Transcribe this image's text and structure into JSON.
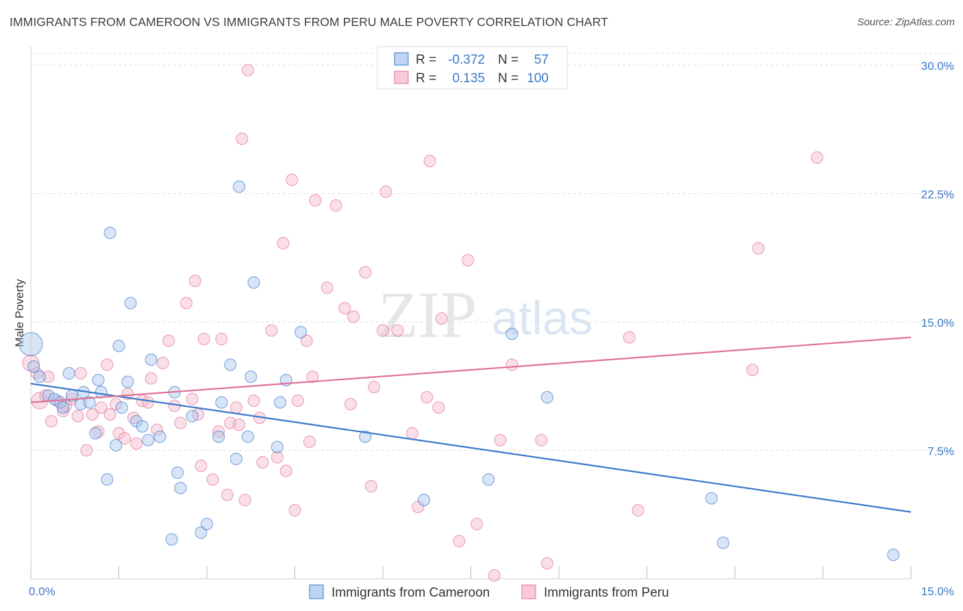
{
  "title": "IMMIGRANTS FROM CAMEROON VS IMMIGRANTS FROM PERU MALE POVERTY CORRELATION CHART",
  "source": "Source: ZipAtlas.com",
  "watermark": {
    "zip": "ZIP",
    "atlas": "atlas"
  },
  "colors": {
    "blue": "#3a78c8",
    "pink": "#e07098",
    "blue_fill": "#a8c6ee",
    "pink_fill": "#f5b8cc",
    "grid": "#dddddd"
  },
  "legend": {
    "rows": [
      {
        "r_label": "R =",
        "r_value": "-0.372",
        "n_label": "N =",
        "n_value": "57"
      },
      {
        "r_label": "R =",
        "r_value": "0.135",
        "n_label": "N =",
        "n_value": "100"
      }
    ]
  },
  "bottom_legend": [
    "Immigrants from Cameroon",
    "Immigrants from Peru"
  ],
  "chart_data": {
    "type": "scatter",
    "title": "IMMIGRANTS FROM CAMEROON VS IMMIGRANTS FROM PERU MALE POVERTY CORRELATION CHART",
    "xlabel": "",
    "ylabel": "Male Poverty",
    "xlim": [
      0,
      15
    ],
    "ylim": [
      0,
      31
    ],
    "x_tick_labels": [
      "0.0%",
      "15.0%"
    ],
    "y_ticks": [
      7.5,
      15.0,
      22.5,
      30.0
    ],
    "y_tick_labels": [
      "7.5%",
      "15.0%",
      "22.5%",
      "30.0%"
    ],
    "grid": true,
    "legend_position": "top-center",
    "series": [
      {
        "name": "Immigrants from Cameroon",
        "color": "#3a78c8",
        "trend": {
          "x": [
            0,
            15
          ],
          "y": [
            11.4,
            3.9
          ]
        },
        "points": [
          {
            "x": 0.0,
            "y": 13.7,
            "s": "xl"
          },
          {
            "x": 0.05,
            "y": 12.4,
            "s": "m"
          },
          {
            "x": 0.15,
            "y": 11.8,
            "s": "m"
          },
          {
            "x": 0.3,
            "y": 10.7,
            "s": "m"
          },
          {
            "x": 0.4,
            "y": 10.5,
            "s": "m"
          },
          {
            "x": 0.5,
            "y": 10.3,
            "s": "m"
          },
          {
            "x": 0.55,
            "y": 10.0,
            "s": "m"
          },
          {
            "x": 0.65,
            "y": 12.0,
            "s": "m"
          },
          {
            "x": 0.7,
            "y": 10.7,
            "s": "m"
          },
          {
            "x": 0.85,
            "y": 10.2,
            "s": "m"
          },
          {
            "x": 0.9,
            "y": 10.9,
            "s": "m"
          },
          {
            "x": 1.0,
            "y": 10.3,
            "s": "m"
          },
          {
            "x": 1.1,
            "y": 8.5,
            "s": "m"
          },
          {
            "x": 1.15,
            "y": 11.6,
            "s": "m"
          },
          {
            "x": 1.2,
            "y": 10.9,
            "s": "m"
          },
          {
            "x": 1.3,
            "y": 5.8,
            "s": "m"
          },
          {
            "x": 1.35,
            "y": 20.2,
            "s": "m"
          },
          {
            "x": 1.45,
            "y": 7.8,
            "s": "m"
          },
          {
            "x": 1.5,
            "y": 13.6,
            "s": "m"
          },
          {
            "x": 1.55,
            "y": 10.0,
            "s": "m"
          },
          {
            "x": 1.65,
            "y": 11.5,
            "s": "m"
          },
          {
            "x": 1.7,
            "y": 16.1,
            "s": "m"
          },
          {
            "x": 1.8,
            "y": 9.2,
            "s": "m"
          },
          {
            "x": 1.9,
            "y": 8.9,
            "s": "m"
          },
          {
            "x": 2.0,
            "y": 8.1,
            "s": "m"
          },
          {
            "x": 2.05,
            "y": 12.8,
            "s": "m"
          },
          {
            "x": 2.2,
            "y": 8.3,
            "s": "m"
          },
          {
            "x": 2.4,
            "y": 2.3,
            "s": "m"
          },
          {
            "x": 2.45,
            "y": 10.9,
            "s": "m"
          },
          {
            "x": 2.5,
            "y": 6.2,
            "s": "m"
          },
          {
            "x": 2.55,
            "y": 5.3,
            "s": "m"
          },
          {
            "x": 2.75,
            "y": 9.5,
            "s": "m"
          },
          {
            "x": 2.9,
            "y": 2.7,
            "s": "m"
          },
          {
            "x": 3.0,
            "y": 3.2,
            "s": "m"
          },
          {
            "x": 3.2,
            "y": 8.3,
            "s": "m"
          },
          {
            "x": 3.25,
            "y": 10.3,
            "s": "m"
          },
          {
            "x": 3.4,
            "y": 12.5,
            "s": "m"
          },
          {
            "x": 3.5,
            "y": 7.0,
            "s": "m"
          },
          {
            "x": 3.55,
            "y": 22.9,
            "s": "m"
          },
          {
            "x": 3.7,
            "y": 8.3,
            "s": "m"
          },
          {
            "x": 3.75,
            "y": 11.8,
            "s": "m"
          },
          {
            "x": 3.8,
            "y": 17.3,
            "s": "m"
          },
          {
            "x": 4.2,
            "y": 7.7,
            "s": "m"
          },
          {
            "x": 4.25,
            "y": 10.3,
            "s": "m"
          },
          {
            "x": 4.35,
            "y": 11.6,
            "s": "m"
          },
          {
            "x": 4.6,
            "y": 14.4,
            "s": "m"
          },
          {
            "x": 5.7,
            "y": 8.3,
            "s": "m"
          },
          {
            "x": 6.7,
            "y": 4.6,
            "s": "m"
          },
          {
            "x": 7.8,
            "y": 5.8,
            "s": "m"
          },
          {
            "x": 8.2,
            "y": 14.3,
            "s": "m"
          },
          {
            "x": 8.8,
            "y": 10.6,
            "s": "m"
          },
          {
            "x": 11.6,
            "y": 4.7,
            "s": "m"
          },
          {
            "x": 11.8,
            "y": 2.1,
            "s": "m"
          },
          {
            "x": 14.7,
            "y": 1.4,
            "s": "m"
          }
        ]
      },
      {
        "name": "Immigrants from Peru",
        "color": "#e07098",
        "trend": {
          "x": [
            0,
            15
          ],
          "y": [
            10.3,
            14.1
          ]
        },
        "points": [
          {
            "x": 0.0,
            "y": 12.6,
            "s": "l"
          },
          {
            "x": 0.1,
            "y": 12.0,
            "s": "m"
          },
          {
            "x": 0.15,
            "y": 10.4,
            "s": "l"
          },
          {
            "x": 0.25,
            "y": 10.7,
            "s": "m"
          },
          {
            "x": 0.3,
            "y": 11.8,
            "s": "m"
          },
          {
            "x": 0.35,
            "y": 9.2,
            "s": "m"
          },
          {
            "x": 0.45,
            "y": 10.4,
            "s": "m"
          },
          {
            "x": 0.55,
            "y": 9.8,
            "s": "m"
          },
          {
            "x": 0.6,
            "y": 10.1,
            "s": "m"
          },
          {
            "x": 0.7,
            "y": 10.5,
            "s": "m"
          },
          {
            "x": 0.8,
            "y": 9.5,
            "s": "m"
          },
          {
            "x": 0.85,
            "y": 12.0,
            "s": "m"
          },
          {
            "x": 0.95,
            "y": 7.5,
            "s": "m"
          },
          {
            "x": 1.05,
            "y": 9.6,
            "s": "m"
          },
          {
            "x": 1.15,
            "y": 8.6,
            "s": "m"
          },
          {
            "x": 1.2,
            "y": 10.0,
            "s": "m"
          },
          {
            "x": 1.3,
            "y": 12.5,
            "s": "m"
          },
          {
            "x": 1.35,
            "y": 9.6,
            "s": "m"
          },
          {
            "x": 1.45,
            "y": 10.2,
            "s": "m"
          },
          {
            "x": 1.5,
            "y": 8.5,
            "s": "m"
          },
          {
            "x": 1.6,
            "y": 8.2,
            "s": "m"
          },
          {
            "x": 1.65,
            "y": 10.8,
            "s": "m"
          },
          {
            "x": 1.75,
            "y": 9.4,
            "s": "m"
          },
          {
            "x": 1.8,
            "y": 7.9,
            "s": "m"
          },
          {
            "x": 1.9,
            "y": 10.4,
            "s": "m"
          },
          {
            "x": 2.0,
            "y": 10.3,
            "s": "m"
          },
          {
            "x": 2.05,
            "y": 11.7,
            "s": "m"
          },
          {
            "x": 2.15,
            "y": 8.7,
            "s": "m"
          },
          {
            "x": 2.25,
            "y": 12.6,
            "s": "m"
          },
          {
            "x": 2.35,
            "y": 13.9,
            "s": "m"
          },
          {
            "x": 2.45,
            "y": 10.1,
            "s": "m"
          },
          {
            "x": 2.55,
            "y": 9.1,
            "s": "m"
          },
          {
            "x": 2.65,
            "y": 16.1,
            "s": "m"
          },
          {
            "x": 2.75,
            "y": 10.5,
            "s": "m"
          },
          {
            "x": 2.8,
            "y": 17.4,
            "s": "m"
          },
          {
            "x": 2.85,
            "y": 9.6,
            "s": "m"
          },
          {
            "x": 2.9,
            "y": 6.6,
            "s": "m"
          },
          {
            "x": 2.95,
            "y": 14.0,
            "s": "m"
          },
          {
            "x": 3.1,
            "y": 5.8,
            "s": "m"
          },
          {
            "x": 3.2,
            "y": 8.6,
            "s": "m"
          },
          {
            "x": 3.25,
            "y": 14.0,
            "s": "m"
          },
          {
            "x": 3.35,
            "y": 4.9,
            "s": "m"
          },
          {
            "x": 3.4,
            "y": 9.1,
            "s": "m"
          },
          {
            "x": 3.5,
            "y": 10.0,
            "s": "m"
          },
          {
            "x": 3.55,
            "y": 9.0,
            "s": "m"
          },
          {
            "x": 3.6,
            "y": 25.7,
            "s": "m"
          },
          {
            "x": 3.65,
            "y": 4.6,
            "s": "m"
          },
          {
            "x": 3.7,
            "y": 29.7,
            "s": "m"
          },
          {
            "x": 3.8,
            "y": 10.4,
            "s": "m"
          },
          {
            "x": 3.9,
            "y": 9.4,
            "s": "m"
          },
          {
            "x": 3.95,
            "y": 6.8,
            "s": "m"
          },
          {
            "x": 4.1,
            "y": 14.5,
            "s": "m"
          },
          {
            "x": 4.2,
            "y": 7.1,
            "s": "m"
          },
          {
            "x": 4.3,
            "y": 19.6,
            "s": "m"
          },
          {
            "x": 4.35,
            "y": 6.3,
            "s": "m"
          },
          {
            "x": 4.45,
            "y": 23.3,
            "s": "m"
          },
          {
            "x": 4.5,
            "y": 4.0,
            "s": "m"
          },
          {
            "x": 4.55,
            "y": 10.4,
            "s": "m"
          },
          {
            "x": 4.7,
            "y": 13.9,
            "s": "m"
          },
          {
            "x": 4.75,
            "y": 8.0,
            "s": "m"
          },
          {
            "x": 4.8,
            "y": 11.8,
            "s": "m"
          },
          {
            "x": 4.85,
            "y": 22.1,
            "s": "m"
          },
          {
            "x": 5.05,
            "y": 17.0,
            "s": "m"
          },
          {
            "x": 5.2,
            "y": 21.8,
            "s": "m"
          },
          {
            "x": 5.35,
            "y": 15.8,
            "s": "m"
          },
          {
            "x": 5.45,
            "y": 10.2,
            "s": "m"
          },
          {
            "x": 5.5,
            "y": 15.3,
            "s": "m"
          },
          {
            "x": 5.7,
            "y": 17.9,
            "s": "m"
          },
          {
            "x": 5.8,
            "y": 5.4,
            "s": "m"
          },
          {
            "x": 5.85,
            "y": 11.2,
            "s": "m"
          },
          {
            "x": 6.0,
            "y": 14.5,
            "s": "m"
          },
          {
            "x": 6.05,
            "y": 22.6,
            "s": "m"
          },
          {
            "x": 6.25,
            "y": 14.5,
            "s": "m"
          },
          {
            "x": 6.5,
            "y": 8.5,
            "s": "m"
          },
          {
            "x": 6.6,
            "y": 4.2,
            "s": "m"
          },
          {
            "x": 6.75,
            "y": 10.6,
            "s": "m"
          },
          {
            "x": 6.8,
            "y": 24.4,
            "s": "m"
          },
          {
            "x": 6.95,
            "y": 10.0,
            "s": "m"
          },
          {
            "x": 7.0,
            "y": 15.2,
            "s": "m"
          },
          {
            "x": 7.3,
            "y": 2.2,
            "s": "m"
          },
          {
            "x": 7.45,
            "y": 18.6,
            "s": "m"
          },
          {
            "x": 7.6,
            "y": 3.2,
            "s": "m"
          },
          {
            "x": 7.9,
            "y": 0.2,
            "s": "m"
          },
          {
            "x": 8.0,
            "y": 8.1,
            "s": "m"
          },
          {
            "x": 8.2,
            "y": 12.5,
            "s": "m"
          },
          {
            "x": 8.7,
            "y": 8.1,
            "s": "m"
          },
          {
            "x": 8.8,
            "y": 0.9,
            "s": "m"
          },
          {
            "x": 10.2,
            "y": 14.1,
            "s": "m"
          },
          {
            "x": 10.35,
            "y": 4.0,
            "s": "m"
          },
          {
            "x": 12.3,
            "y": 12.2,
            "s": "m"
          },
          {
            "x": 12.4,
            "y": 19.3,
            "s": "m"
          },
          {
            "x": 13.4,
            "y": 24.6,
            "s": "m"
          }
        ]
      }
    ]
  }
}
